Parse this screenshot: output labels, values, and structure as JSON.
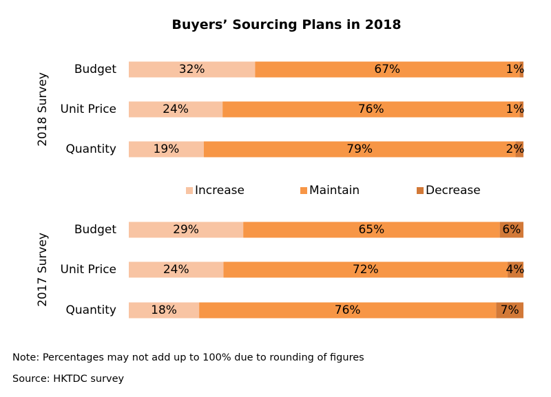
{
  "chart_data": {
    "type": "bar",
    "orientation": "horizontal",
    "stacked": true,
    "title": "Buyers’ Sourcing Plans in 2018",
    "series": [
      {
        "name": "Increase",
        "color": "#f8c4a3"
      },
      {
        "name": "Maintain",
        "color": "#f79646"
      },
      {
        "name": "Decrease",
        "color": "#d27938"
      }
    ],
    "groups": [
      {
        "label": "2018 Survey",
        "categories": [
          "Budget",
          "Unit Price",
          "Quantity"
        ],
        "values": [
          [
            32,
            67,
            1
          ],
          [
            24,
            76,
            1
          ],
          [
            19,
            79,
            2
          ]
        ]
      },
      {
        "label": "2017 Survey",
        "categories": [
          "Budget",
          "Unit Price",
          "Quantity"
        ],
        "values": [
          [
            29,
            65,
            6
          ],
          [
            24,
            72,
            4
          ],
          [
            18,
            76,
            7
          ]
        ]
      }
    ],
    "value_suffix": "%",
    "legend_position": "center",
    "xlim": [
      0,
      100
    ],
    "grid": false
  },
  "notes": {
    "note": "Note: Percentages may not add up to 100% due to rounding of figures",
    "source": "Source: HKTDC survey"
  }
}
